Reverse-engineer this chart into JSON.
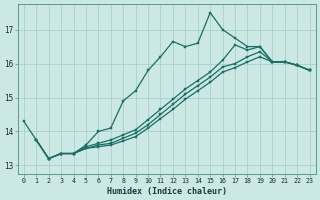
{
  "xlabel": "Humidex (Indice chaleur)",
  "bg_color": "#cce8e4",
  "grid_color": "#aacfcb",
  "line_color": "#1a6e64",
  "xlim": [
    -0.5,
    23.5
  ],
  "ylim": [
    12.75,
    17.75
  ],
  "yticks": [
    13,
    14,
    15,
    16,
    17
  ],
  "xticks": [
    0,
    1,
    2,
    3,
    4,
    5,
    6,
    7,
    8,
    9,
    10,
    11,
    12,
    13,
    14,
    15,
    16,
    17,
    18,
    19,
    20,
    21,
    22,
    23
  ],
  "lines": [
    {
      "x": [
        0,
        1,
        2,
        3,
        4,
        5,
        6,
        7,
        8,
        9,
        10,
        11,
        12,
        13,
        14,
        15,
        16,
        17,
        18,
        19,
        20,
        21,
        22,
        23
      ],
      "y": [
        14.3,
        13.75,
        13.2,
        13.35,
        13.35,
        13.6,
        14.0,
        14.1,
        14.9,
        15.2,
        15.8,
        16.2,
        16.65,
        16.5,
        16.6,
        17.5,
        17.0,
        16.75,
        16.5,
        16.5,
        16.05,
        16.05,
        15.95,
        15.8
      ]
    },
    {
      "x": [
        1,
        2,
        3,
        4,
        5,
        6,
        7,
        8,
        9,
        10,
        11,
        12,
        13,
        14,
        15,
        16,
        17,
        18,
        19,
        20,
        21,
        22,
        23
      ],
      "y": [
        13.75,
        13.2,
        13.35,
        13.35,
        13.55,
        13.65,
        13.75,
        13.9,
        14.05,
        14.35,
        14.65,
        14.95,
        15.25,
        15.5,
        15.75,
        16.1,
        16.55,
        16.4,
        16.5,
        16.05,
        16.05,
        15.95,
        15.8
      ]
    },
    {
      "x": [
        1,
        2,
        3,
        4,
        5,
        6,
        7,
        8,
        9,
        10,
        11,
        12,
        13,
        14,
        15,
        16,
        17,
        18,
        19,
        20,
        21,
        22,
        23
      ],
      "y": [
        13.75,
        13.2,
        13.35,
        13.35,
        13.5,
        13.6,
        13.65,
        13.8,
        13.95,
        14.2,
        14.5,
        14.8,
        15.1,
        15.35,
        15.6,
        15.9,
        16.0,
        16.2,
        16.35,
        16.05,
        16.05,
        15.95,
        15.8
      ]
    },
    {
      "x": [
        1,
        2,
        3,
        4,
        5,
        6,
        7,
        8,
        9,
        10,
        11,
        12,
        13,
        14,
        15,
        16,
        17,
        18,
        19,
        20,
        21,
        22,
        23
      ],
      "y": [
        13.75,
        13.2,
        13.35,
        13.35,
        13.5,
        13.55,
        13.6,
        13.72,
        13.85,
        14.1,
        14.38,
        14.65,
        14.95,
        15.2,
        15.45,
        15.75,
        15.88,
        16.05,
        16.2,
        16.05,
        16.05,
        15.95,
        15.8
      ]
    }
  ]
}
